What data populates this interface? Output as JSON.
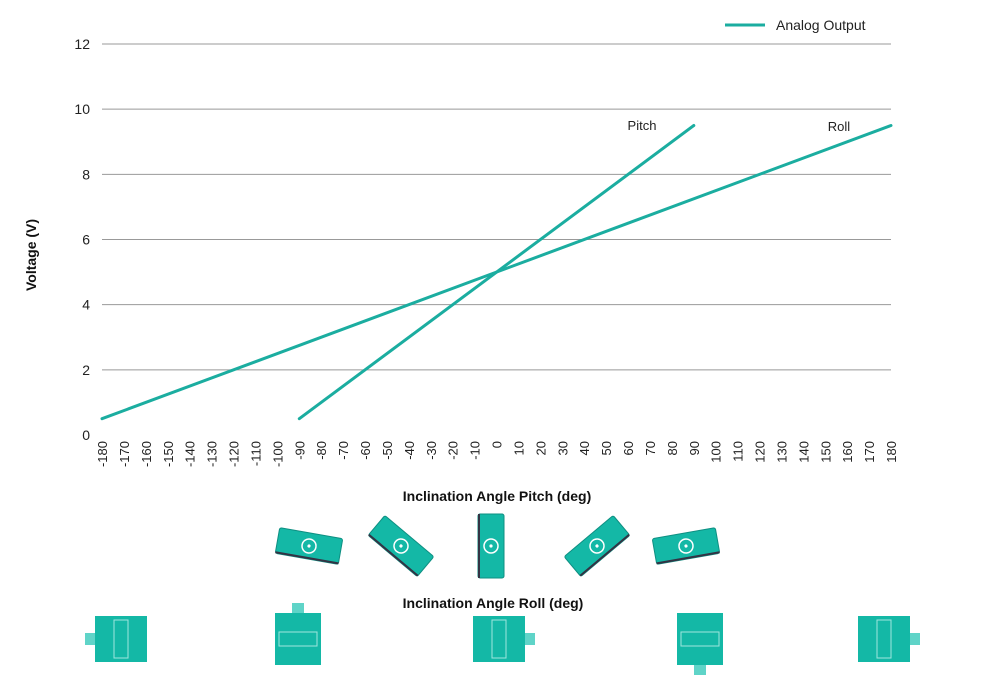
{
  "chart_data": {
    "type": "line",
    "xlabel": "Inclination Angle Pitch (deg)",
    "xlabel2": "Inclination Angle  Roll (deg)",
    "ylabel": "Voltage (V)",
    "xlim": [
      -180,
      180
    ],
    "ylim": [
      0,
      12
    ],
    "x_ticks": [
      "-180",
      "-170",
      "-160",
      "-150",
      "-140",
      "-130",
      "-120",
      "-110",
      "-100",
      "-90",
      "-80",
      "-70",
      "-60",
      "-50",
      "-40",
      "-30",
      "-20",
      "-10",
      "0",
      "10",
      "20",
      "30",
      "40",
      "50",
      "60",
      "70",
      "80",
      "90",
      "100",
      "110",
      "120",
      "130",
      "140",
      "150",
      "160",
      "170",
      "180"
    ],
    "y_ticks": [
      "0",
      "2",
      "4",
      "6",
      "8",
      "10",
      "12"
    ],
    "grid": "horizontal",
    "legend": {
      "entry": "Analog Output",
      "placement": "top-right"
    },
    "series": [
      {
        "name": "Pitch",
        "x": [
          -90,
          90
        ],
        "y": [
          0.5,
          9.5
        ]
      },
      {
        "name": "Roll",
        "x": [
          -180,
          180
        ],
        "y": [
          0.5,
          9.5
        ]
      }
    ],
    "colors": {
      "line": "#1bada0",
      "device": "#14b8a6",
      "grid": "#999999"
    }
  },
  "pitch_device_icons": [
    {
      "name": "sensor-tilt-minus-90-icon",
      "angle": -90,
      "rotation": 10
    },
    {
      "name": "sensor-tilt-minus-45-icon",
      "angle": -45,
      "rotation": 40
    },
    {
      "name": "sensor-tilt-0-icon",
      "angle": 0,
      "rotation": 90
    },
    {
      "name": "sensor-tilt-plus-45-icon",
      "angle": 45,
      "rotation": -40
    },
    {
      "name": "sensor-tilt-plus-90-icon",
      "angle": 90,
      "rotation": -10
    }
  ],
  "roll_device_icons": [
    {
      "name": "sensor-roll-minus-180-icon",
      "angle": -180,
      "rotation": 0
    },
    {
      "name": "sensor-roll-minus-90-icon",
      "angle": -90,
      "rotation": 90
    },
    {
      "name": "sensor-roll-0-icon",
      "angle": 0,
      "rotation": 180
    },
    {
      "name": "sensor-roll-plus-90-icon",
      "angle": 90,
      "rotation": 270
    },
    {
      "name": "sensor-roll-plus-180-icon",
      "angle": 180,
      "rotation": 180
    }
  ]
}
